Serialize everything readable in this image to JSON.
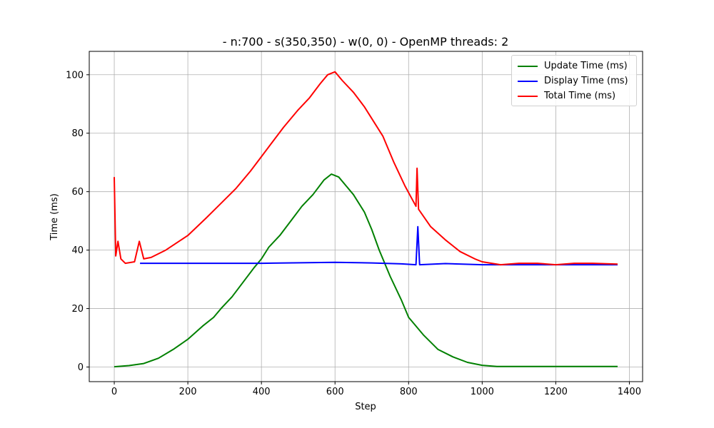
{
  "chart_data": {
    "type": "line",
    "title": "- n:700 - s(350,350) - w(0, 0) - OpenMP threads: 2",
    "xlabel": "Step",
    "ylabel": "Time (ms)",
    "xlim": [
      -68,
      1436
    ],
    "ylim": [
      -5,
      108
    ],
    "xticks": [
      0,
      200,
      400,
      600,
      800,
      1000,
      1200,
      1400
    ],
    "yticks": [
      0,
      20,
      40,
      60,
      80,
      100
    ],
    "grid": true,
    "legend_position": "top-right",
    "series": [
      {
        "name": "Update Time (ms)",
        "color": "#008000",
        "points": [
          [
            0,
            0.1
          ],
          [
            40,
            0.5
          ],
          [
            80,
            1.2
          ],
          [
            120,
            3
          ],
          [
            160,
            6
          ],
          [
            200,
            9.5
          ],
          [
            240,
            14
          ],
          [
            270,
            17
          ],
          [
            290,
            20
          ],
          [
            320,
            24
          ],
          [
            350,
            29
          ],
          [
            380,
            34
          ],
          [
            400,
            37
          ],
          [
            420,
            41
          ],
          [
            450,
            45
          ],
          [
            480,
            50
          ],
          [
            510,
            55
          ],
          [
            540,
            59
          ],
          [
            570,
            64
          ],
          [
            590,
            66
          ],
          [
            610,
            65
          ],
          [
            630,
            62
          ],
          [
            650,
            59
          ],
          [
            680,
            53
          ],
          [
            700,
            47
          ],
          [
            720,
            40
          ],
          [
            750,
            31
          ],
          [
            780,
            23
          ],
          [
            800,
            17
          ],
          [
            840,
            11
          ],
          [
            880,
            6
          ],
          [
            920,
            3.5
          ],
          [
            960,
            1.6
          ],
          [
            1000,
            0.6
          ],
          [
            1040,
            0.2
          ],
          [
            1100,
            0.2
          ],
          [
            1200,
            0.2
          ],
          [
            1300,
            0.2
          ],
          [
            1368,
            0.2
          ]
        ]
      },
      {
        "name": "Display Time (ms)",
        "color": "#0000ff",
        "points": [
          [
            70,
            35.5
          ],
          [
            200,
            35.5
          ],
          [
            400,
            35.5
          ],
          [
            600,
            35.8
          ],
          [
            700,
            35.6
          ],
          [
            780,
            35.3
          ],
          [
            820,
            35
          ],
          [
            825,
            48
          ],
          [
            830,
            35
          ],
          [
            900,
            35.4
          ],
          [
            1000,
            35
          ],
          [
            1100,
            35
          ],
          [
            1200,
            35
          ],
          [
            1300,
            35
          ],
          [
            1368,
            35
          ]
        ]
      },
      {
        "name": "Total Time (ms)",
        "color": "#ff0000",
        "points": [
          [
            0,
            65
          ],
          [
            4,
            38
          ],
          [
            10,
            43
          ],
          [
            18,
            37
          ],
          [
            30,
            35.5
          ],
          [
            55,
            36
          ],
          [
            68,
            43
          ],
          [
            80,
            37
          ],
          [
            100,
            37.5
          ],
          [
            140,
            40
          ],
          [
            200,
            45
          ],
          [
            250,
            51
          ],
          [
            290,
            56
          ],
          [
            330,
            61
          ],
          [
            370,
            67
          ],
          [
            400,
            72
          ],
          [
            430,
            77
          ],
          [
            460,
            82
          ],
          [
            500,
            88
          ],
          [
            530,
            92
          ],
          [
            560,
            97
          ],
          [
            580,
            100
          ],
          [
            600,
            101
          ],
          [
            620,
            98
          ],
          [
            650,
            94
          ],
          [
            680,
            89
          ],
          [
            700,
            85
          ],
          [
            730,
            79
          ],
          [
            760,
            70
          ],
          [
            790,
            62
          ],
          [
            820,
            55
          ],
          [
            823,
            68
          ],
          [
            827,
            54
          ],
          [
            860,
            48
          ],
          [
            900,
            43.5
          ],
          [
            940,
            39.5
          ],
          [
            980,
            37
          ],
          [
            1000,
            36
          ],
          [
            1050,
            35
          ],
          [
            1100,
            35.5
          ],
          [
            1150,
            35.5
          ],
          [
            1200,
            35
          ],
          [
            1250,
            35.5
          ],
          [
            1300,
            35.5
          ],
          [
            1368,
            35.2
          ]
        ]
      }
    ]
  }
}
